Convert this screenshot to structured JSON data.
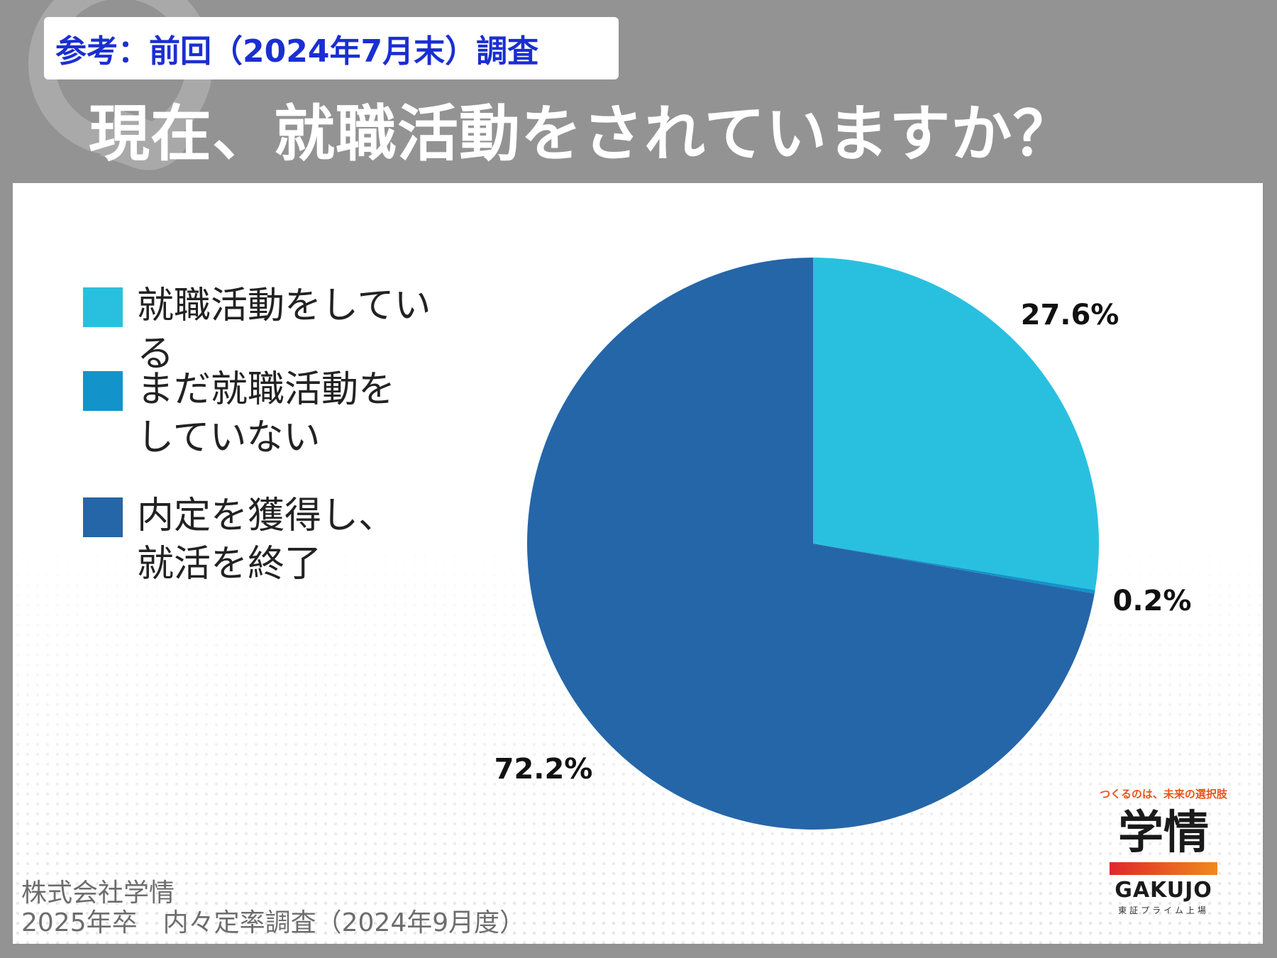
{
  "header": {
    "reference_label": "参考：前回（2024年7月末）調査",
    "question": "現在、就職活動をされていますか？"
  },
  "chart_data": {
    "type": "pie",
    "title": "現在、就職活動をされていますか？",
    "categories": [
      "就職活動をしている",
      "まだ就職活動をしていない",
      "内定を獲得し、就活を終了"
    ],
    "values": [
      27.6,
      0.2,
      72.2
    ],
    "unit": "%",
    "colors": [
      "#29c0e0",
      "#1293c9",
      "#2566a8"
    ],
    "data_labels": [
      "27.6%",
      "0.2%",
      "72.2%"
    ],
    "legend_placement": "left",
    "start_angle": "12 o'clock, clockwise"
  },
  "legend": [
    {
      "label": "就職活動をしている",
      "color": "#29c0e0"
    },
    {
      "label": "まだ就職活動を\nしていない",
      "color": "#1293c9"
    },
    {
      "label": "内定を獲得し、\n就活を終了",
      "color": "#2566a8"
    }
  ],
  "source": {
    "company": "株式会社学情",
    "survey": "2025年卒　内々定率調査（2024年9月度）"
  },
  "logo": {
    "tagline": "つくるのは、未来の選択肢",
    "mark": "学情",
    "name": "GAKUJO",
    "sub": "東証プライム上場"
  }
}
